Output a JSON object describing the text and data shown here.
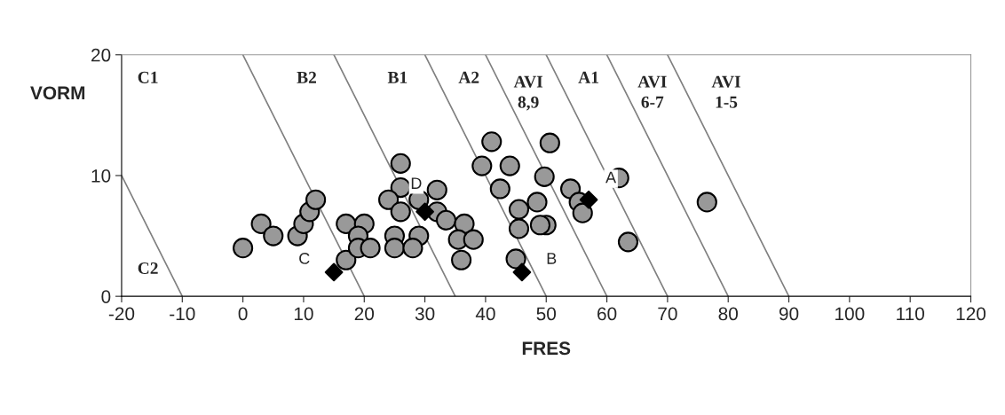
{
  "chart_data": {
    "type": "scatter",
    "xlabel": "FRES",
    "ylabel": "VORM",
    "xlim": [
      -20,
      120
    ],
    "ylim": [
      0,
      20
    ],
    "xticks": [
      -20,
      -10,
      0,
      10,
      20,
      30,
      40,
      50,
      60,
      70,
      80,
      90,
      100,
      110,
      120
    ],
    "yticks": [
      0,
      10,
      20
    ],
    "grid": false,
    "legend": false,
    "series": [
      {
        "marker": "circle",
        "color": "#999999",
        "x": [
          0,
          3,
          5,
          9,
          10,
          11,
          12,
          17,
          17,
          20,
          19,
          19,
          21,
          26,
          26,
          24,
          26,
          25,
          25,
          29,
          32,
          32,
          29,
          28,
          33.5,
          36.5,
          35.5,
          38,
          36,
          41,
          39.4,
          44,
          42.4,
          45.5,
          48.5,
          45.5,
          50,
          49,
          45,
          50.6,
          49.7,
          54,
          55.4,
          56,
          62,
          63.5,
          76.5
        ],
        "values": [
          4,
          6,
          5,
          5,
          6,
          7,
          8,
          3,
          6,
          6,
          5,
          4,
          4,
          11,
          9,
          8,
          7,
          5,
          4,
          8,
          8.8,
          7,
          5,
          4,
          6.3,
          6,
          4.7,
          4.7,
          3,
          12.8,
          10.8,
          10.8,
          8.9,
          7.2,
          7.8,
          5.6,
          5.9,
          5.9,
          3.1,
          12.7,
          9.9,
          8.9,
          7.8,
          6.9,
          9.8,
          4.5,
          7.8
        ]
      },
      {
        "marker": "diamond",
        "color": "#000000",
        "x": [
          57,
          46,
          15,
          30
        ],
        "values": [
          8,
          2,
          2,
          7
        ]
      },
      {
        "type": "line",
        "color": "#808080",
        "x": [
          -10,
          -20
        ],
        "values": [
          0,
          10
        ]
      },
      {
        "type": "line",
        "color": "#808080",
        "x": [
          20,
          0
        ],
        "values": [
          0,
          20
        ]
      },
      {
        "type": "line",
        "color": "#808080",
        "x": [
          35,
          15
        ],
        "values": [
          0,
          20
        ]
      },
      {
        "type": "line",
        "color": "#808080",
        "x": [
          50,
          30
        ],
        "values": [
          0,
          20
        ]
      },
      {
        "type": "line",
        "color": "#808080",
        "x": [
          60,
          40
        ],
        "values": [
          0,
          20
        ]
      },
      {
        "type": "line",
        "color": "#808080",
        "x": [
          70,
          50
        ],
        "values": [
          0,
          20
        ]
      },
      {
        "type": "line",
        "color": "#808080",
        "x": [
          80,
          60
        ],
        "values": [
          0,
          20
        ]
      },
      {
        "type": "line",
        "color": "#808080",
        "x": [
          90,
          70
        ],
        "values": [
          0,
          20
        ]
      }
    ],
    "annotations": [
      {
        "text": "A",
        "x": 57,
        "y": 8
      },
      {
        "text": "B",
        "x": 46,
        "y": 2
      },
      {
        "text": "C",
        "x": 15,
        "y": 2
      },
      {
        "text": "D",
        "x": 30,
        "y": 7
      },
      "C1",
      "C2",
      "B2",
      "B1",
      "A2",
      "AVI\n8,9",
      "A1",
      "AVI\n6-7",
      "AVI\n1-5"
    ]
  }
}
